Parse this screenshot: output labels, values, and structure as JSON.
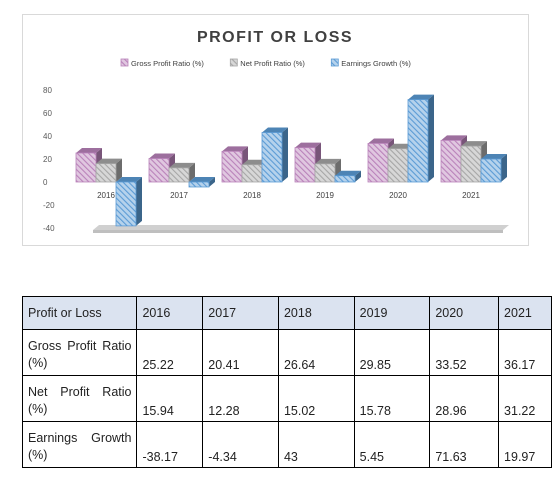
{
  "chart_data": {
    "type": "bar",
    "title": "PROFIT OR LOSS",
    "categories": [
      "2016",
      "2017",
      "2018",
      "2019",
      "2020",
      "2021"
    ],
    "series": [
      {
        "name": "Gross Profit Ratio (%)",
        "values": [
          25.22,
          20.41,
          26.64,
          29.85,
          33.52,
          36.17
        ],
        "color": "#b982ba"
      },
      {
        "name": "Net Profit Ratio (%)",
        "values": [
          15.94,
          12.28,
          15.02,
          15.78,
          28.96,
          31.22
        ],
        "color": "#a6a6a6"
      },
      {
        "name": "Earnings Growth (%)",
        "values": [
          -38.17,
          -4.34,
          43,
          5.45,
          71.63,
          19.97
        ],
        "color": "#5b9bd5"
      }
    ],
    "ylim": [
      -40,
      80
    ],
    "yticks": [
      "80",
      "60",
      "40",
      "20",
      "0",
      "-20",
      "-40"
    ],
    "xlabel": "",
    "ylabel": "",
    "legend": "top",
    "grid": false,
    "style": "3d-hatched"
  },
  "table": {
    "header": [
      "Profit or Loss",
      "2016",
      "2017",
      "2018",
      "2019",
      "2020",
      "2021"
    ],
    "rows": [
      {
        "label": "Gross Profit Ratio (%)",
        "values": [
          "25.22",
          "20.41",
          "26.64",
          "29.85",
          "33.52",
          "36.17"
        ]
      },
      {
        "label": "Net Profit Ratio (%)",
        "values": [
          "15.94",
          "12.28",
          "15.02",
          "15.78",
          "28.96",
          "31.22"
        ]
      },
      {
        "label": "Earnings Growth (%)",
        "values": [
          "-38.17",
          "-4.34",
          "43",
          "5.45",
          "71.63",
          "19.97"
        ]
      }
    ]
  }
}
